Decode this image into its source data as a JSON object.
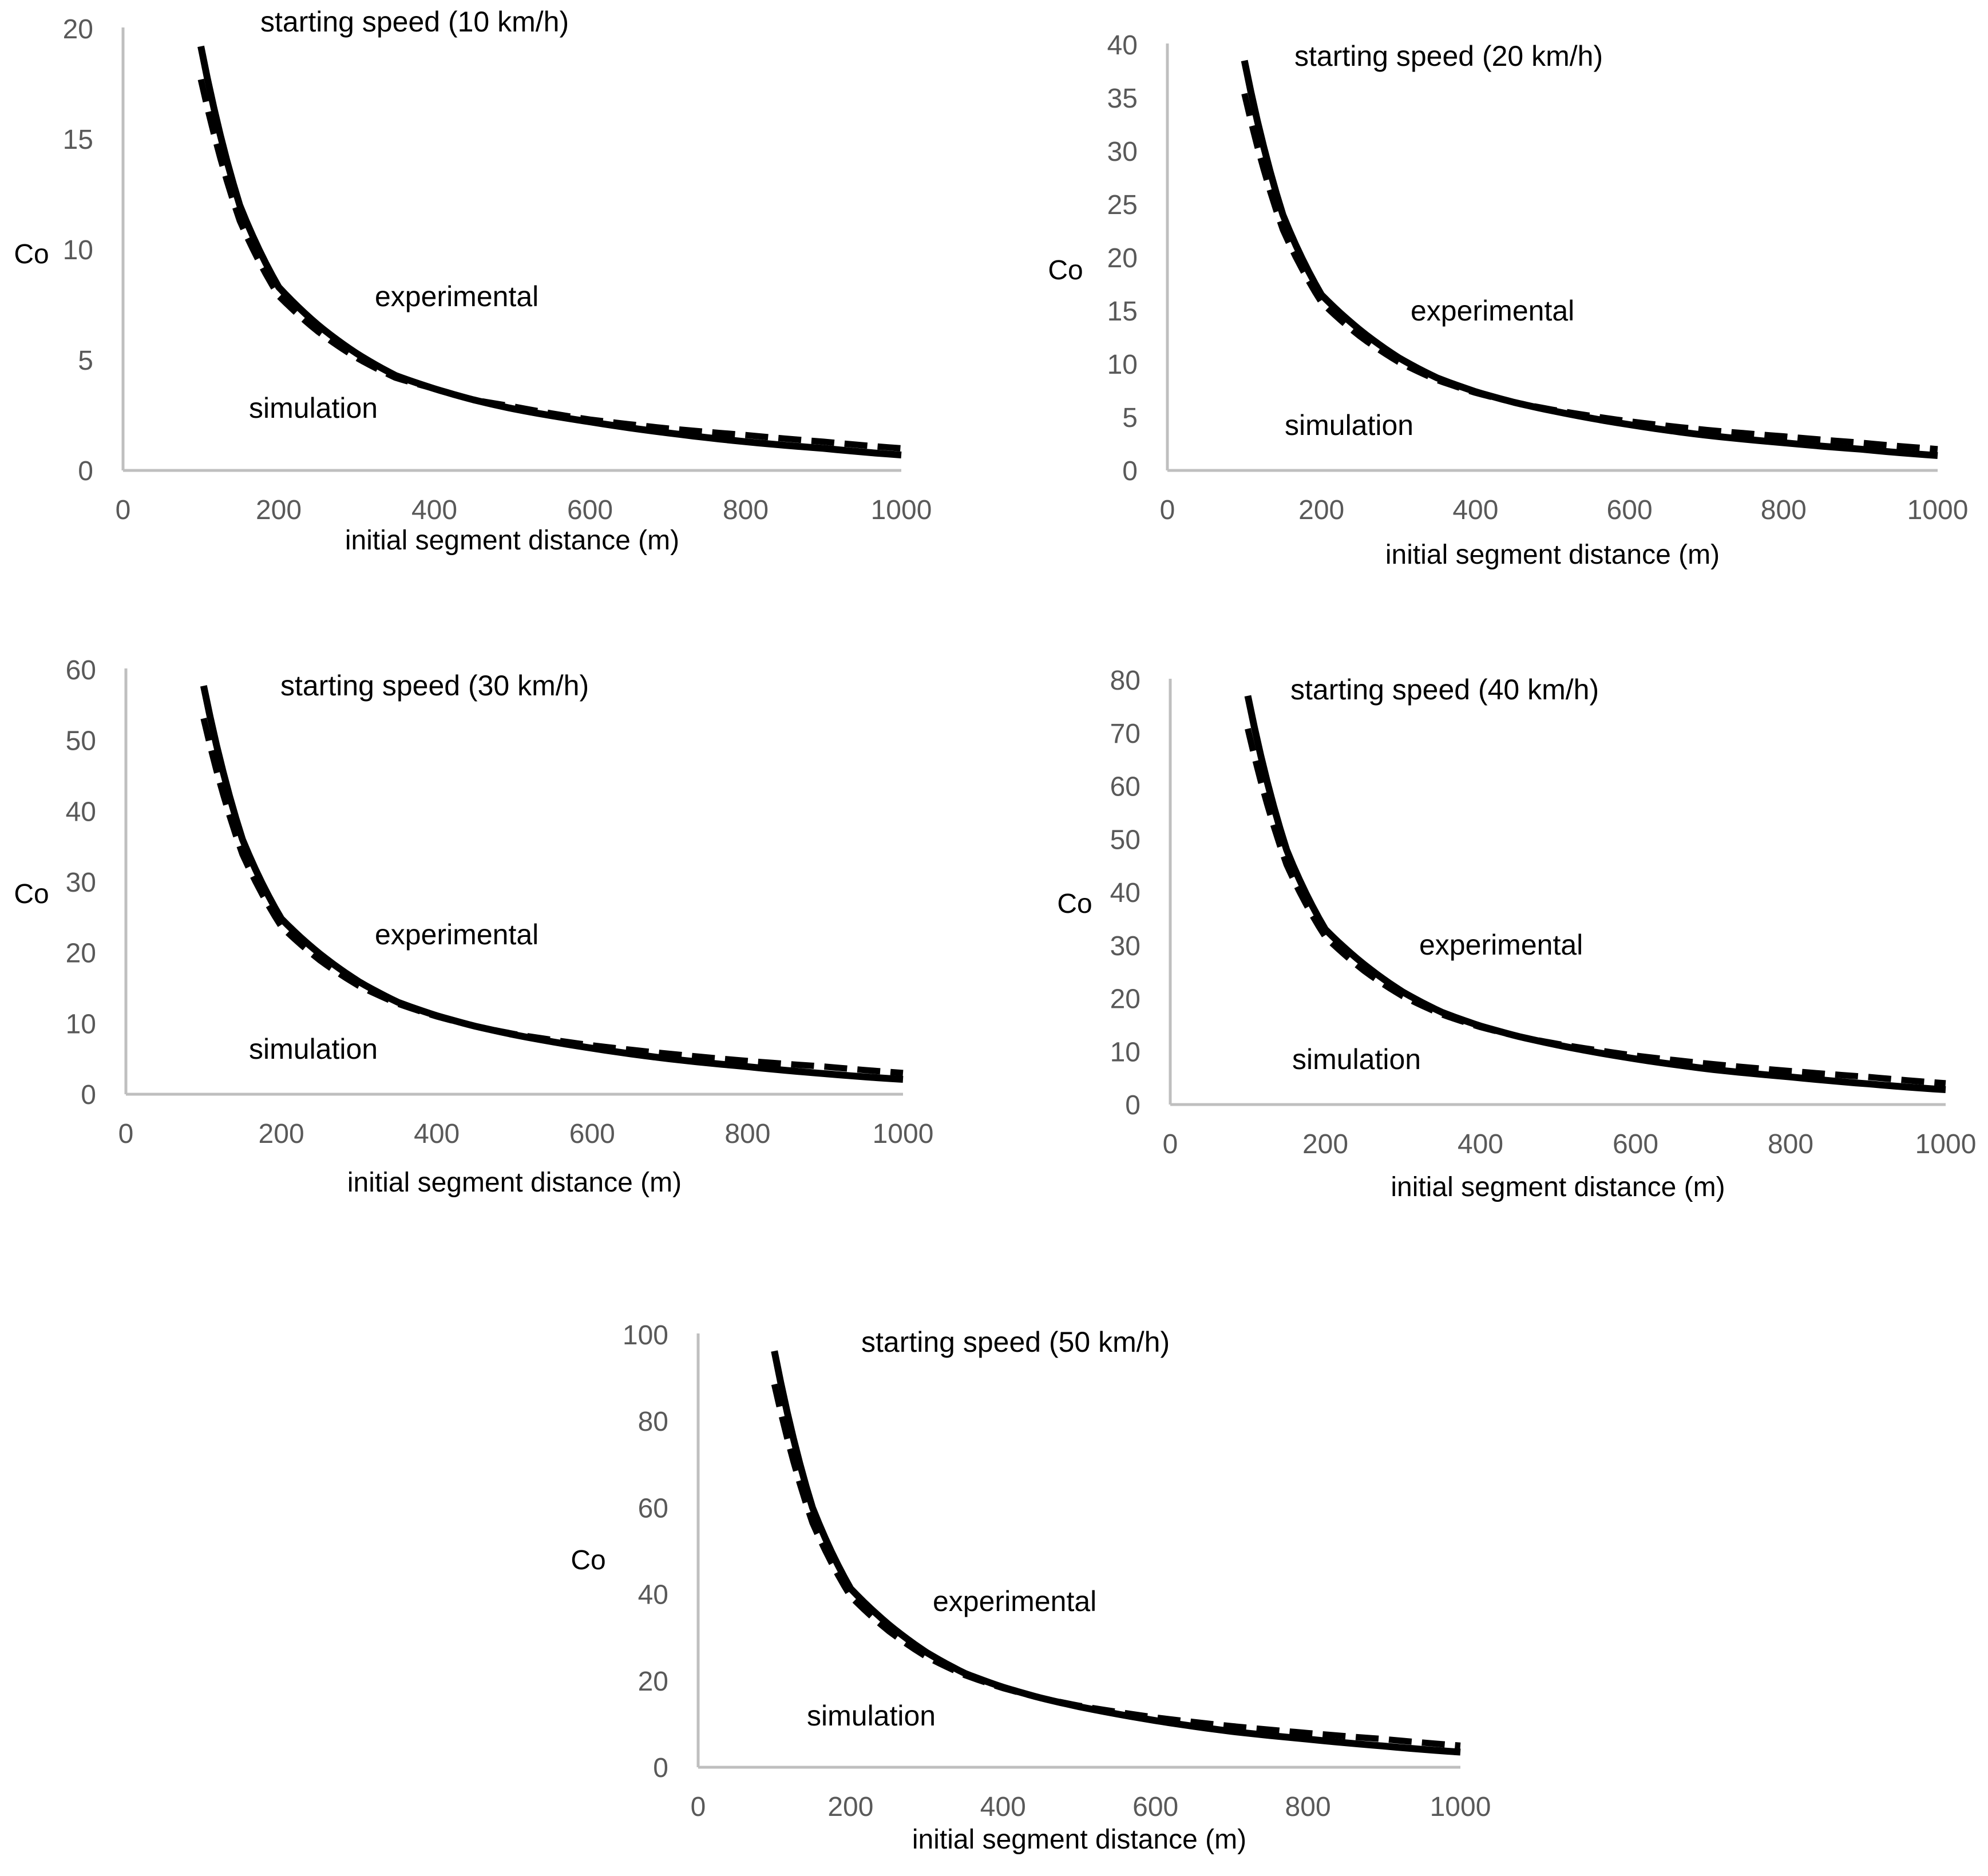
{
  "chart_data": [
    {
      "type": "line",
      "title": "starting speed (10 km/h)",
      "xlabel": "initial segment distance (m)",
      "ylabel": "Co",
      "xlim": [
        0,
        1000
      ],
      "ylim": [
        0,
        20
      ],
      "xticks": [
        "0",
        "200",
        "400",
        "600",
        "800",
        "1000"
      ],
      "yticks": [
        "0",
        "5",
        "10",
        "15",
        "20"
      ],
      "x": [
        100,
        150,
        200,
        250,
        300,
        350,
        400,
        450,
        500,
        600,
        700,
        800,
        900,
        1000
      ],
      "series": [
        {
          "name": "experimental",
          "style": "solid",
          "values": [
            19.2,
            12.0,
            8.3,
            6.6,
            5.3,
            4.3,
            3.7,
            3.2,
            2.8,
            2.2,
            1.7,
            1.3,
            1.0,
            0.7
          ]
        },
        {
          "name": "simulation",
          "style": "dashed",
          "values": [
            17.7,
            11.3,
            7.9,
            6.3,
            5.1,
            4.2,
            3.7,
            3.2,
            2.9,
            2.3,
            1.9,
            1.6,
            1.3,
            1.0
          ]
        }
      ],
      "annotations": {
        "experimental": "experimental",
        "simulation": "simulation"
      }
    },
    {
      "type": "line",
      "title": "starting speed (20 km/h)",
      "xlabel": "initial segment distance (m)",
      "ylabel": "Co",
      "xlim": [
        0,
        1000
      ],
      "ylim": [
        0,
        40
      ],
      "xticks": [
        "0",
        "200",
        "400",
        "600",
        "800",
        "1000"
      ],
      "yticks": [
        "0",
        "5",
        "10",
        "15",
        "20",
        "25",
        "30",
        "35",
        "40"
      ],
      "x": [
        100,
        150,
        200,
        250,
        300,
        350,
        400,
        450,
        500,
        600,
        700,
        800,
        900,
        1000
      ],
      "series": [
        {
          "name": "experimental",
          "style": "solid",
          "values": [
            38.5,
            24.0,
            16.5,
            13.2,
            10.6,
            8.7,
            7.4,
            6.4,
            5.6,
            4.3,
            3.3,
            2.6,
            2.0,
            1.4
          ]
        },
        {
          "name": "simulation",
          "style": "dashed",
          "values": [
            35.4,
            22.6,
            15.8,
            12.6,
            10.2,
            8.5,
            7.3,
            6.4,
            5.7,
            4.6,
            3.8,
            3.2,
            2.6,
            2.0
          ]
        }
      ],
      "annotations": {
        "experimental": "experimental",
        "simulation": "simulation"
      }
    },
    {
      "type": "line",
      "title": "starting speed (30 km/h)",
      "xlabel": "initial segment distance (m)",
      "ylabel": "Co",
      "xlim": [
        0,
        1000
      ],
      "ylim": [
        0,
        60
      ],
      "xticks": [
        "0",
        "200",
        "400",
        "600",
        "800",
        "1000"
      ],
      "yticks": [
        "0",
        "10",
        "20",
        "30",
        "40",
        "50",
        "60"
      ],
      "x": [
        100,
        150,
        200,
        250,
        300,
        350,
        400,
        450,
        500,
        600,
        700,
        800,
        900,
        1000
      ],
      "series": [
        {
          "name": "experimental",
          "style": "solid",
          "values": [
            57.7,
            36.0,
            24.8,
            19.8,
            15.9,
            13.0,
            11.1,
            9.6,
            8.4,
            6.5,
            5.0,
            3.9,
            2.9,
            2.1
          ]
        },
        {
          "name": "simulation",
          "style": "dashed",
          "values": [
            53.1,
            33.9,
            23.7,
            18.9,
            15.3,
            12.8,
            11.0,
            9.6,
            8.5,
            6.9,
            5.7,
            4.7,
            3.9,
            3.0
          ]
        }
      ],
      "annotations": {
        "experimental": "experimental",
        "simulation": "simulation"
      }
    },
    {
      "type": "line",
      "title": "starting speed (40 km/h)",
      "xlabel": "initial segment distance (m)",
      "ylabel": "Co",
      "xlim": [
        0,
        1000
      ],
      "ylim": [
        0,
        80
      ],
      "xticks": [
        "0",
        "200",
        "400",
        "600",
        "800",
        "1000"
      ],
      "yticks": [
        "0",
        "10",
        "20",
        "30",
        "40",
        "50",
        "60",
        "70",
        "80"
      ],
      "x": [
        100,
        150,
        200,
        250,
        300,
        350,
        400,
        450,
        500,
        600,
        700,
        800,
        900,
        1000
      ],
      "series": [
        {
          "name": "experimental",
          "style": "solid",
          "values": [
            77.0,
            48.0,
            33.0,
            26.4,
            21.2,
            17.4,
            14.8,
            12.8,
            11.2,
            8.6,
            6.6,
            5.2,
            3.9,
            2.8
          ]
        },
        {
          "name": "simulation",
          "style": "dashed",
          "values": [
            70.8,
            45.2,
            31.6,
            25.2,
            20.4,
            17.0,
            14.6,
            12.8,
            11.4,
            9.2,
            7.6,
            6.3,
            5.2,
            4.0
          ]
        }
      ],
      "annotations": {
        "experimental": "experimental",
        "simulation": "simulation"
      }
    },
    {
      "type": "line",
      "title": "starting speed (50 km/h)",
      "xlabel": "initial segment distance (m)",
      "ylabel": "Co",
      "xlim": [
        0,
        1000
      ],
      "ylim": [
        0,
        100
      ],
      "xticks": [
        "0",
        "200",
        "400",
        "600",
        "800",
        "1000"
      ],
      "yticks": [
        "0",
        "20",
        "40",
        "60",
        "80",
        "100"
      ],
      "x": [
        100,
        150,
        200,
        250,
        300,
        350,
        400,
        450,
        500,
        600,
        700,
        800,
        900,
        1000
      ],
      "series": [
        {
          "name": "experimental",
          "style": "solid",
          "values": [
            96.2,
            60.0,
            41.3,
            33.0,
            26.5,
            21.7,
            18.5,
            16.0,
            14.0,
            10.8,
            8.3,
            6.5,
            4.9,
            3.5
          ]
        },
        {
          "name": "simulation",
          "style": "dashed",
          "values": [
            88.5,
            56.5,
            39.5,
            31.5,
            25.5,
            21.3,
            18.3,
            16.0,
            14.2,
            11.5,
            9.5,
            7.9,
            6.5,
            5.0
          ]
        }
      ],
      "annotations": {
        "experimental": "experimental",
        "simulation": "simulation"
      }
    }
  ]
}
